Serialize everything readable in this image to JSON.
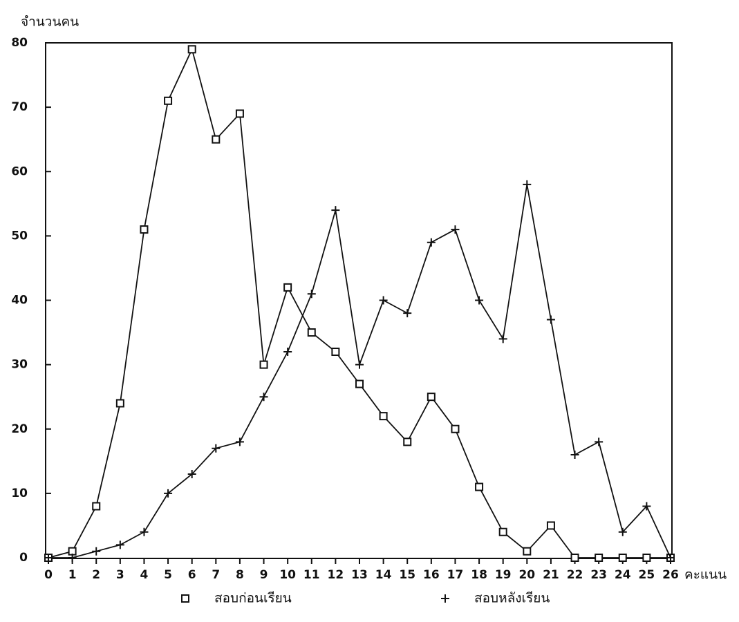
{
  "chart_data": {
    "type": "line",
    "y_label": "จำนวนคน",
    "x_label": "คะแนน",
    "x": [
      0,
      1,
      2,
      3,
      4,
      5,
      6,
      7,
      8,
      9,
      10,
      11,
      12,
      13,
      14,
      15,
      16,
      17,
      18,
      19,
      20,
      21,
      22,
      23,
      24,
      25,
      26
    ],
    "series": [
      {
        "name": "สอบก่อนเรียน",
        "color": "#111111",
        "marker": "square",
        "values": [
          0,
          1,
          8,
          24,
          51,
          71,
          79,
          65,
          69,
          30,
          42,
          35,
          32,
          27,
          22,
          18,
          25,
          20,
          11,
          4,
          1,
          5,
          0,
          0,
          0,
          0,
          0
        ]
      },
      {
        "name": "สอบหลังเรียน",
        "color": "#111111",
        "marker": "plus",
        "values": [
          0,
          0,
          1,
          2,
          4,
          10,
          13,
          17,
          18,
          25,
          32,
          41,
          54,
          30,
          40,
          38,
          49,
          51,
          40,
          34,
          58,
          37,
          16,
          18,
          4,
          8,
          0
        ]
      }
    ],
    "xlim": [
      0,
      26
    ],
    "xticks": [
      0,
      1,
      2,
      3,
      4,
      5,
      6,
      7,
      8,
      9,
      10,
      11,
      12,
      13,
      14,
      15,
      16,
      17,
      18,
      19,
      20,
      21,
      22,
      23,
      24,
      25,
      26
    ],
    "ylim": [
      0,
      80
    ],
    "yticks": [
      0,
      10,
      20,
      30,
      40,
      50,
      60,
      70,
      80
    ],
    "grid": false
  }
}
